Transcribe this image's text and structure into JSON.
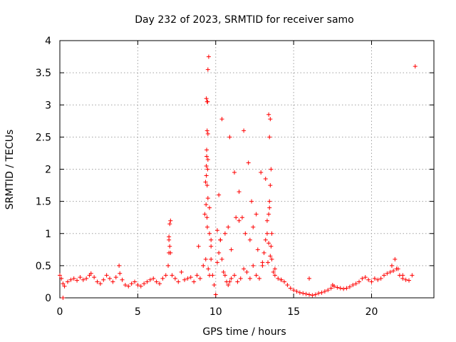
{
  "chart_data": {
    "type": "scatter",
    "title": "Day 232 of 2023, SRMTID for receiver samo",
    "xlabel": "GPS time / hours",
    "ylabel": "SRMTID / TECUs",
    "xlim": [
      0,
      24
    ],
    "ylim": [
      0,
      4
    ],
    "xticks": [
      0,
      5,
      10,
      15,
      20
    ],
    "xtick_labels": [
      "0",
      "5",
      "10",
      "15",
      "20"
    ],
    "yticks": [
      0,
      0.5,
      1,
      1.5,
      2,
      2.5,
      3,
      3.5,
      4
    ],
    "ytick_labels": [
      "0",
      "0.5",
      "1",
      "1.5",
      "2",
      "2.5",
      "3",
      "3.5",
      "4"
    ],
    "grid": true,
    "marker": "+",
    "color": "#ff0000",
    "series": [
      {
        "name": "SRMTID",
        "x": [
          0.0,
          0.1,
          0.2,
          0.3,
          0.5,
          0.7,
          0.9,
          1.1,
          1.3,
          1.5,
          1.7,
          1.9,
          2.0,
          2.2,
          2.4,
          2.6,
          2.8,
          3.0,
          3.2,
          3.4,
          3.6,
          3.8,
          3.85,
          4.0,
          4.2,
          4.4,
          4.6,
          4.8,
          5.0,
          5.2,
          5.4,
          5.6,
          5.8,
          6.0,
          6.2,
          6.4,
          6.6,
          6.8,
          6.95,
          7.0,
          7.05,
          7.1,
          7.2,
          7.4,
          7.6,
          7.8,
          8.0,
          8.2,
          8.4,
          8.6,
          8.8,
          9.0,
          9.2,
          9.3,
          9.35,
          9.4,
          9.42,
          9.45,
          9.48,
          9.5,
          9.55,
          9.6,
          9.7,
          9.8,
          9.9,
          10.0,
          10.1,
          10.2,
          10.3,
          10.4,
          10.5,
          10.6,
          10.7,
          10.8,
          10.9,
          11.0,
          11.2,
          11.4,
          11.6,
          11.8,
          12.0,
          12.2,
          12.4,
          12.6,
          12.8,
          13.0,
          13.1,
          13.2,
          13.3,
          13.4,
          13.45,
          13.5,
          13.55,
          13.6,
          13.7,
          13.8,
          14.0,
          14.2,
          14.4,
          14.6,
          14.8,
          15.0,
          15.2,
          15.4,
          15.6,
          15.8,
          16.0,
          16.2,
          16.4,
          16.6,
          16.8,
          17.0,
          17.2,
          17.4,
          17.6,
          17.8,
          18.0,
          18.2,
          18.4,
          18.6,
          18.8,
          19.0,
          19.2,
          19.4,
          19.6,
          19.8,
          20.0,
          20.2,
          20.4,
          20.6,
          20.8,
          21.0,
          21.2,
          21.4,
          21.6,
          21.8,
          22.0,
          22.2,
          22.4,
          22.6,
          22.8,
          9.4,
          9.45,
          9.5,
          9.42,
          9.48,
          9.4,
          9.45,
          9.5,
          9.38,
          9.44,
          9.46,
          9.52,
          9.6,
          9.7,
          9.36,
          9.5,
          10.2,
          10.4,
          10.9,
          11.2,
          11.5,
          11.8,
          12.1,
          12.3,
          12.6,
          12.9,
          13.2,
          13.4,
          13.5,
          13.45,
          13.55,
          13.3,
          13.6,
          13.5,
          13.45,
          13.4,
          13.35,
          7.0,
          7.05,
          7.1,
          7.0,
          8.9,
          9.6,
          9.7,
          10.1,
          10.3,
          10.6,
          10.8,
          11.0,
          11.3,
          11.5,
          11.7,
          11.9,
          12.2,
          12.4,
          12.7,
          13.0,
          13.8,
          14.2,
          16.0,
          17.5,
          21.3,
          21.5,
          21.7,
          22.0,
          0.2
        ],
        "y": [
          0.35,
          0.3,
          0.22,
          0.18,
          0.25,
          0.28,
          0.3,
          0.27,
          0.32,
          0.28,
          0.3,
          0.35,
          0.38,
          0.32,
          0.25,
          0.22,
          0.28,
          0.35,
          0.3,
          0.25,
          0.32,
          0.5,
          0.38,
          0.28,
          0.2,
          0.18,
          0.22,
          0.25,
          0.2,
          0.18,
          0.22,
          0.25,
          0.28,
          0.3,
          0.25,
          0.22,
          0.3,
          0.35,
          0.5,
          0.9,
          1.15,
          0.7,
          0.35,
          0.3,
          0.25,
          0.4,
          0.28,
          0.3,
          0.32,
          0.25,
          0.35,
          0.3,
          0.5,
          1.3,
          1.8,
          2.05,
          2.3,
          2.6,
          3.05,
          3.55,
          3.75,
          1.0,
          0.6,
          0.35,
          0.2,
          0.05,
          0.55,
          0.7,
          0.9,
          0.6,
          0.4,
          0.35,
          0.25,
          0.2,
          0.25,
          0.3,
          0.35,
          0.25,
          0.3,
          0.45,
          0.4,
          0.3,
          0.5,
          0.35,
          0.3,
          0.55,
          0.7,
          0.9,
          1.0,
          1.3,
          1.5,
          1.75,
          0.8,
          0.6,
          0.4,
          0.35,
          0.3,
          0.28,
          0.25,
          0.2,
          0.15,
          0.12,
          0.1,
          0.08,
          0.07,
          0.06,
          0.05,
          0.04,
          0.05,
          0.07,
          0.08,
          0.1,
          0.12,
          0.15,
          0.18,
          0.16,
          0.15,
          0.14,
          0.15,
          0.17,
          0.2,
          0.22,
          0.25,
          0.3,
          0.32,
          0.28,
          0.25,
          0.3,
          0.28,
          0.3,
          0.35,
          0.38,
          0.4,
          0.42,
          0.45,
          0.35,
          0.3,
          0.28,
          0.27,
          0.35,
          3.6,
          3.1,
          3.05,
          2.55,
          2.2,
          2.0,
          1.9,
          1.75,
          1.55,
          1.45,
          1.25,
          1.1,
          0.45,
          0.35,
          0.9,
          0.6,
          2.15,
          1.6,
          2.78,
          2.5,
          1.95,
          1.65,
          2.6,
          2.1,
          1.5,
          1.3,
          1.95,
          1.85,
          2.85,
          2.78,
          2.5,
          2.0,
          1.2,
          1.0,
          0.65,
          1.4,
          0.85,
          0.55,
          0.7,
          0.8,
          1.2,
          0.95,
          0.8,
          1.4,
          0.8,
          1.05,
          0.9,
          1.0,
          1.1,
          0.75,
          1.25,
          1.2,
          1.25,
          1.0,
          0.9,
          1.1,
          0.75,
          0.5,
          0.45,
          0.28,
          0.3,
          0.2,
          0.5,
          0.6,
          0.45,
          0.35,
          0.0
        ]
      }
    ]
  }
}
